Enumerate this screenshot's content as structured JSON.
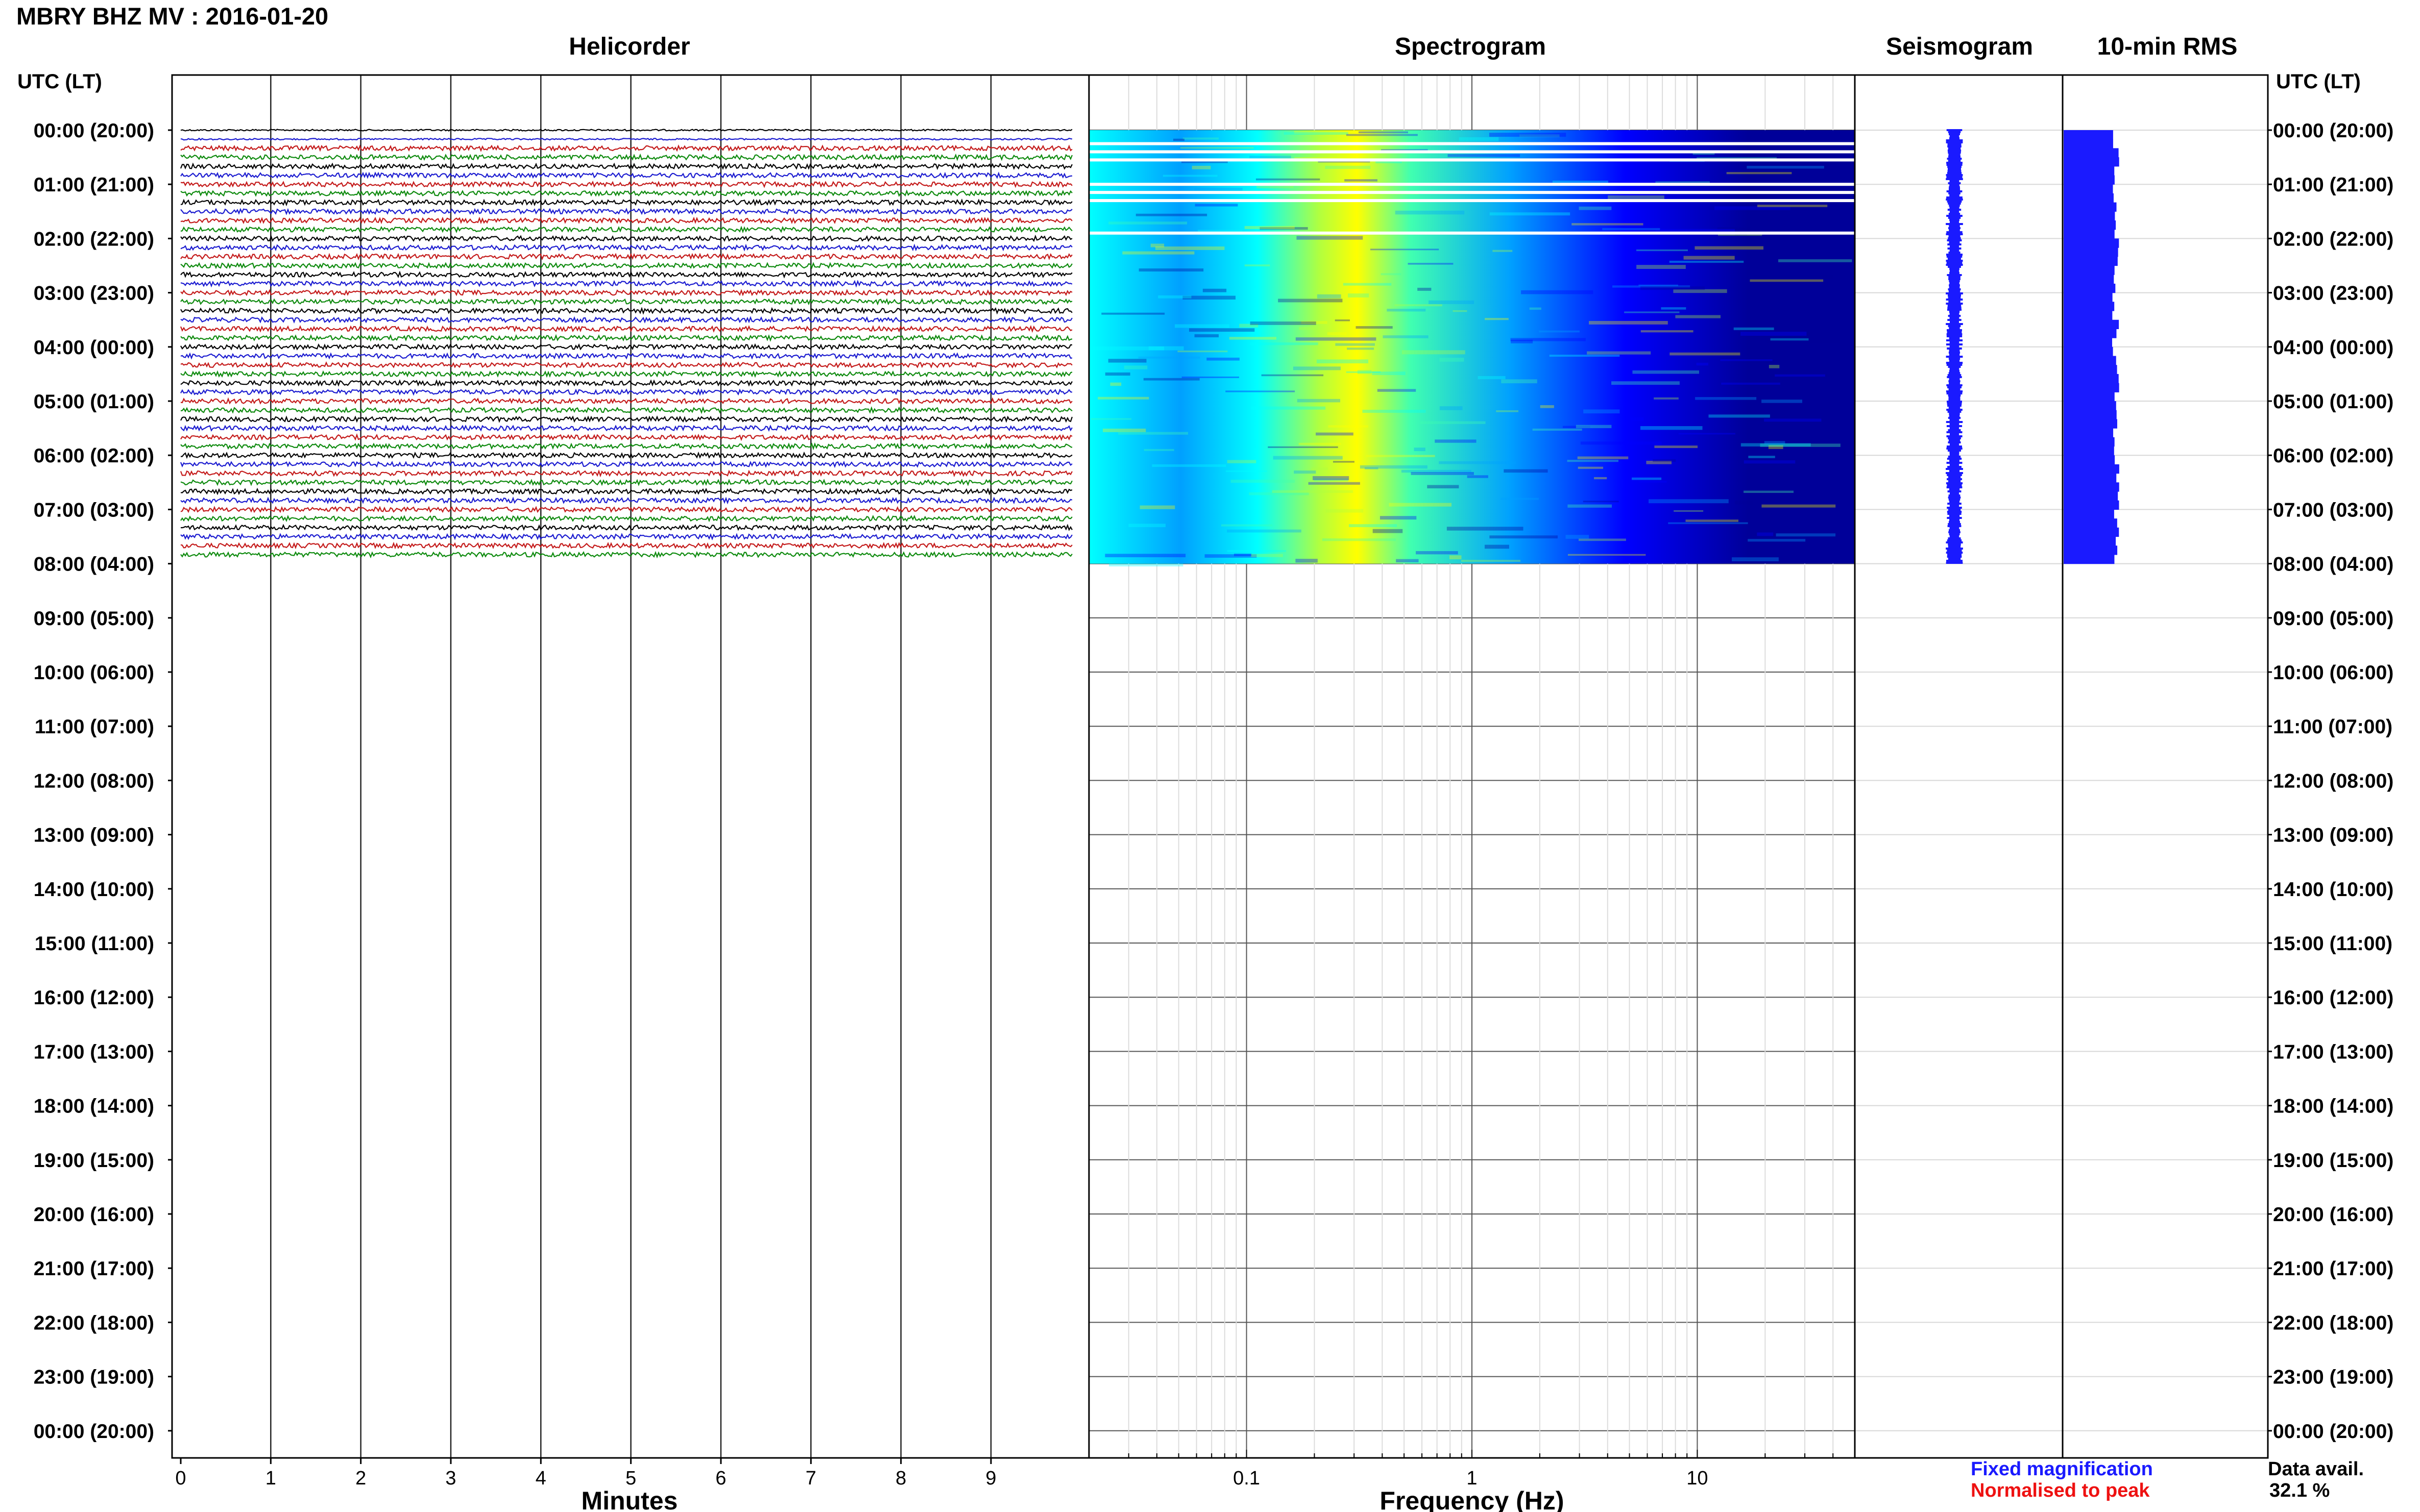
{
  "title": "MBRY BHZ MV : 2016-01-20",
  "panels": {
    "helicorder": "Helicorder",
    "spectrogram": "Spectrogram",
    "seismogram": "Seismogram",
    "rms": "10-min RMS"
  },
  "time_axis_header": "UTC (LT)",
  "time_labels": [
    "00:00 (20:00)",
    "01:00 (21:00)",
    "02:00 (22:00)",
    "03:00 (23:00)",
    "04:00 (00:00)",
    "05:00 (01:00)",
    "06:00 (02:00)",
    "07:00 (03:00)",
    "08:00 (04:00)",
    "09:00 (05:00)",
    "10:00 (06:00)",
    "11:00 (07:00)",
    "12:00 (08:00)",
    "13:00 (09:00)",
    "14:00 (10:00)",
    "15:00 (11:00)",
    "16:00 (12:00)",
    "17:00 (13:00)",
    "18:00 (14:00)",
    "19:00 (15:00)",
    "20:00 (16:00)",
    "21:00 (17:00)",
    "22:00 (18:00)",
    "23:00 (19:00)",
    "00:00 (20:00)"
  ],
  "legend": {
    "fixed": "Fixed magnification",
    "normalised": "Normalised to peak",
    "colors": {
      "fixed": "#1a1aff",
      "normalised": "#ee1111"
    }
  },
  "data_availability": {
    "label": "Data avail.",
    "value": "32.1 %"
  },
  "chart_data": [
    {
      "type": "line",
      "panel": "helicorder",
      "xlabel": "Minutes",
      "xlim": [
        0,
        10
      ],
      "x_ticks": [
        0,
        1,
        2,
        3,
        4,
        5,
        6,
        7,
        8,
        9
      ],
      "y_range_hours": [
        0,
        24
      ],
      "data_until_hour": 8,
      "trace_interval_minutes": 10,
      "trace_colors": [
        "#000000",
        "#1b1bd0",
        "#c41a1a",
        "#0d8a0d"
      ]
    },
    {
      "type": "heatmap",
      "panel": "spectrogram",
      "xlabel": "Frequency (Hz)",
      "xscale": "log",
      "xlim": [
        0.02,
        50
      ],
      "x_ticks": [
        0.1,
        1,
        10
      ],
      "y_range_hours": [
        0,
        24
      ],
      "data_until_hour": 8,
      "colormap": [
        "#000099",
        "#0000ff",
        "#00a0ff",
        "#00ffff",
        "#40ffb0",
        "#b0ff40",
        "#ffff00"
      ]
    },
    {
      "type": "line",
      "panel": "seismogram",
      "y_range_hours": [
        0,
        24
      ],
      "data_until_hour": 8,
      "color": "#1a1aff"
    },
    {
      "type": "bar",
      "panel": "rms",
      "interval_minutes": 10,
      "y_range_hours": [
        0,
        24
      ],
      "data_until_hour": 8,
      "color": "#1a1aff"
    }
  ]
}
